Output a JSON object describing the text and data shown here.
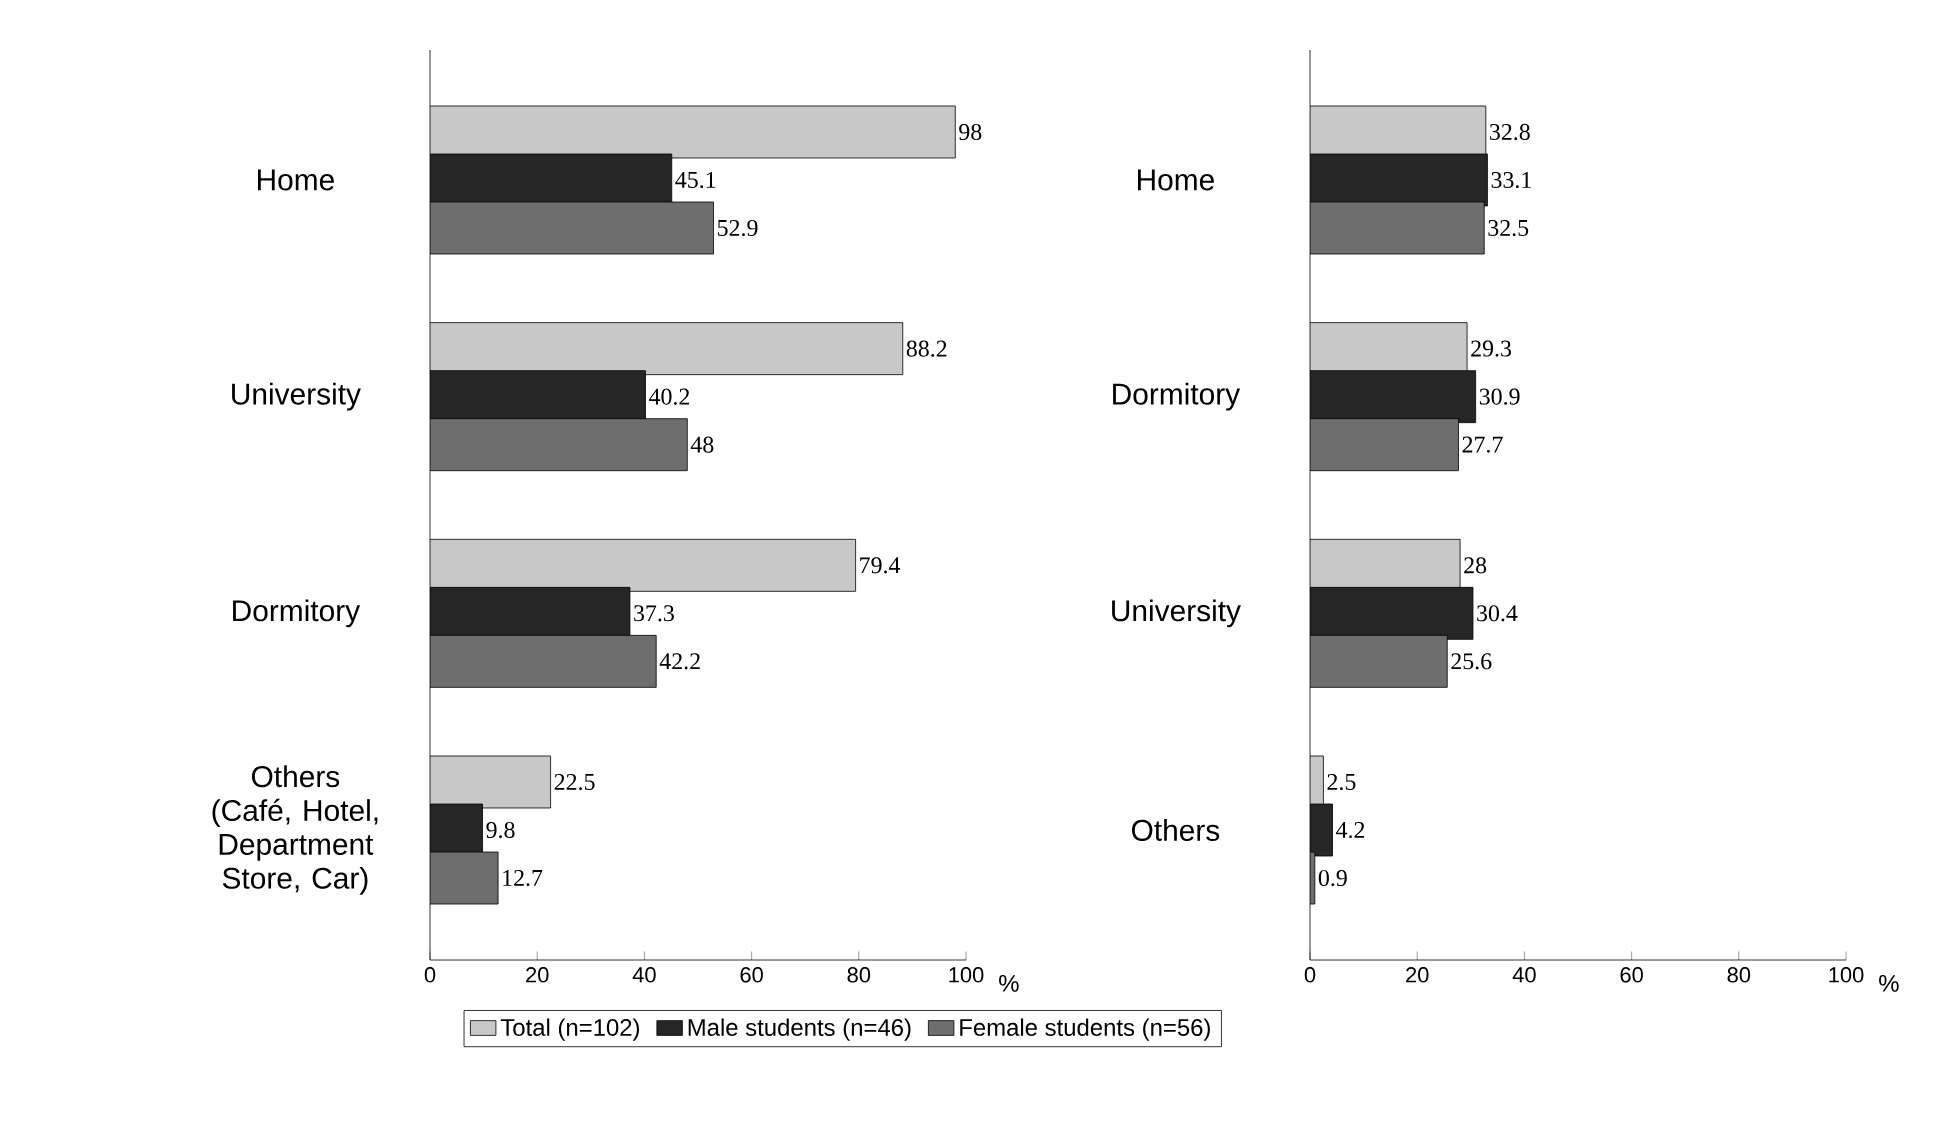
{
  "chart_data": [
    {
      "type": "bar",
      "orientation": "horizontal",
      "categories": [
        "Home",
        "University",
        "Dormitory",
        "Others (Café, Hotel, Department Store, Car)"
      ],
      "xlabel": "%",
      "xlim": [
        0,
        100
      ],
      "xticks": [
        0,
        20,
        40,
        60,
        80,
        100
      ],
      "data_labels": true,
      "legend": "bottom",
      "grid": false,
      "series": [
        {
          "name": "Total (n=102)",
          "color": "#c8c8c8",
          "values": [
            98,
            88.2,
            79.4,
            22.5
          ]
        },
        {
          "name": "Male students (n=46)",
          "color": "#262626",
          "values": [
            45.1,
            40.2,
            37.3,
            9.8
          ]
        },
        {
          "name": "Female students (n=56)",
          "color": "#6e6e6e",
          "values": [
            52.9,
            48,
            42.2,
            12.7
          ]
        }
      ]
    },
    {
      "type": "bar",
      "orientation": "horizontal",
      "categories": [
        "Home",
        "Dormitory",
        "University",
        "Others"
      ],
      "xlabel": "%",
      "xlim": [
        0,
        100
      ],
      "xticks": [
        0,
        20,
        40,
        60,
        80,
        100
      ],
      "data_labels": true,
      "legend": false,
      "grid": false,
      "series": [
        {
          "color": "#c8c8c8",
          "values": [
            32.8,
            29.3,
            28,
            2.5
          ]
        },
        {
          "color": "#262626",
          "values": [
            33.1,
            30.9,
            30.4,
            4.2
          ]
        },
        {
          "color": "#6e6e6e",
          "values": [
            32.5,
            27.7,
            25.6,
            0.9
          ]
        }
      ]
    }
  ]
}
